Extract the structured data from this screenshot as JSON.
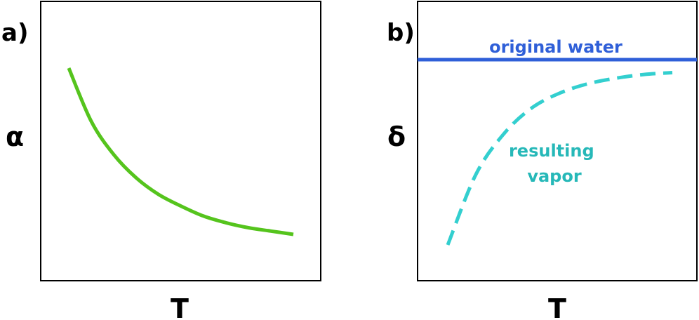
{
  "chart_data": [
    {
      "type": "line",
      "panel_label": "a)",
      "xlabel": "T",
      "ylabel": "α",
      "ticks": false,
      "grid": false,
      "series": [
        {
          "color": "#55c41d",
          "line_style": "solid",
          "trend": "decreasing, leveling off",
          "points": [
            [
              0,
              1.0
            ],
            [
              0.1,
              0.68
            ],
            [
              0.2,
              0.48
            ],
            [
              0.3,
              0.34
            ],
            [
              0.4,
              0.24
            ],
            [
              0.5,
              0.17
            ],
            [
              0.6,
              0.11
            ],
            [
              0.7,
              0.07
            ],
            [
              0.8,
              0.04
            ],
            [
              0.9,
              0.02
            ],
            [
              1.0,
              0.0
            ]
          ]
        }
      ]
    },
    {
      "type": "line",
      "panel_label": "b)",
      "xlabel": "T",
      "ylabel": "δ",
      "ticks": false,
      "grid": false,
      "series": [
        {
          "name": "original water",
          "color": "#2f5fd8",
          "line_style": "solid",
          "trend": "constant",
          "points": [
            [
              0,
              1.0
            ],
            [
              1,
              1.0
            ]
          ]
        },
        {
          "name": "resulting vapor",
          "color": "#33cfcf",
          "line_style": "dashed",
          "trend": "increasing, approaching original water",
          "points": [
            [
              0.1,
              0.0
            ],
            [
              0.2,
              0.38
            ],
            [
              0.3,
              0.6
            ],
            [
              0.4,
              0.74
            ],
            [
              0.5,
              0.82
            ],
            [
              0.6,
              0.87
            ],
            [
              0.7,
              0.9
            ],
            [
              0.8,
              0.92
            ],
            [
              0.9,
              0.93
            ]
          ]
        }
      ]
    }
  ]
}
